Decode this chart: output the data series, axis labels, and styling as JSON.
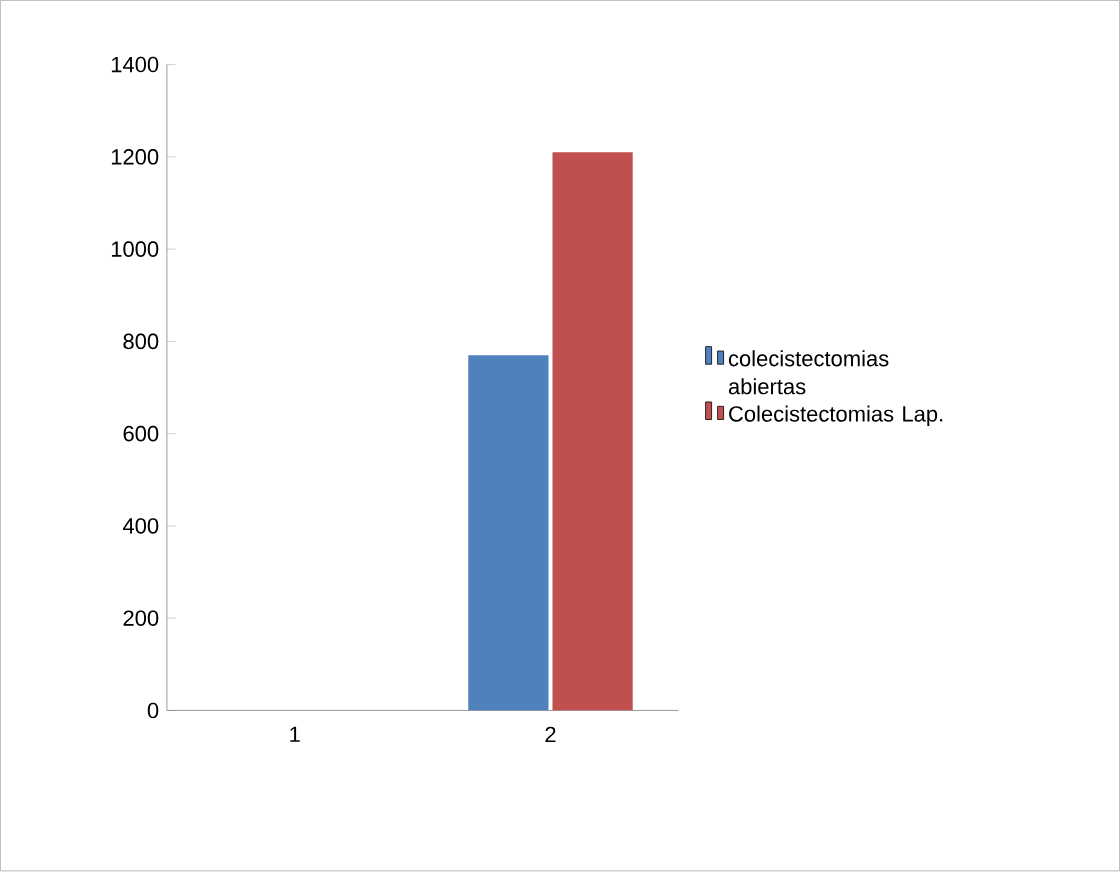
{
  "chart_data": {
    "type": "bar",
    "categories": [
      "1",
      "2"
    ],
    "series": [
      {
        "name": "colecistectomias abiertas",
        "color": "#4f81bd",
        "values": [
          null,
          770
        ]
      },
      {
        "name": "Colecistectomias Lap.",
        "color": "#c0504d",
        "values": [
          null,
          1210
        ]
      }
    ],
    "ylim": [
      0,
      1400
    ],
    "yticks": [
      0,
      200,
      400,
      600,
      800,
      1000,
      1200,
      1400
    ],
    "grid": false,
    "legend": "right"
  }
}
